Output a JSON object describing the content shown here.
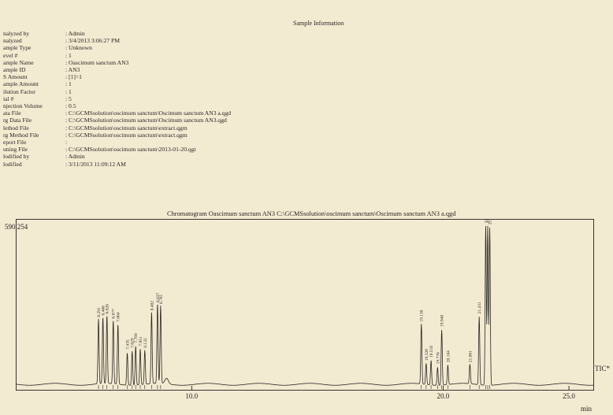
{
  "sheet_title": "Sample Information",
  "info_rows": [
    {
      "label": "nalyzed by",
      "value": ": Admin"
    },
    {
      "label": "nalyzed",
      "value": ": 3/4/2013 3:06:27 PM"
    },
    {
      "label": "ample Type",
      "value": ": Unknown"
    },
    {
      "label": "evel #",
      "value": ": 1"
    },
    {
      "label": "ample Name",
      "value": ": Oascimum sanctum AN3"
    },
    {
      "label": "ample ID",
      "value": ": AN3"
    },
    {
      "label": "S Amount",
      "value": ": [1]=1"
    },
    {
      "label": "ample Amount",
      "value": ": 1"
    },
    {
      "label": "ilution Factor",
      "value": ": 1"
    },
    {
      "label": "ial #",
      "value": ": 5"
    },
    {
      "label": "njection Volume",
      "value": ": 0.5"
    },
    {
      "label": "ata File",
      "value": ": C:\\GCMSsolution\\oscimum sanctum\\Oscimum sanctum AN3 a.qgd"
    },
    {
      "label": "rg Data File",
      "value": ": C:\\GCMSsolution\\oscimum sanctum\\Oscimum sanctum AN3.qgd"
    },
    {
      "label": "lethod File",
      "value": ": C:\\GCMSsolution\\oscimum sanctum\\extract.qgm"
    },
    {
      "label": "rg Method File",
      "value": ": C:\\GCMSsolution\\oscimum sanctum\\extract.qgm"
    },
    {
      "label": "eport File",
      "value": ":"
    },
    {
      "label": "uning File",
      "value": ": C:\\GCMSsolution\\oscimum sanctum\\2013-01-20.qgt"
    },
    {
      "label": "lodified by",
      "value": ": Admin"
    },
    {
      "label": "lodified",
      "value": ": 3/11/2013 11:09:12 AM"
    }
  ],
  "chromatogram_title": "Chromatogram Oascimum sanctum AN3 C:\\GCMSsolution\\oscimum sanctum\\Oscimum sanctum AN3 a.qgd",
  "max_intensity_label": "590,254",
  "x_unit": "min",
  "trace_label": "TIC*",
  "colors": {
    "background": "#f3ead2",
    "ink": "#2a2620"
  },
  "chart_data": {
    "type": "line",
    "xlim": [
      3.0,
      26.0
    ],
    "ylim": [
      0,
      590254
    ],
    "x_ticks": [
      10.0,
      20.0,
      25.0
    ],
    "x_tick_labels": [
      "10.0",
      "20.0",
      "25.0"
    ],
    "grid": false,
    "peaks": [
      {
        "rt": 6.291,
        "label": "6.291",
        "height": 0.4
      },
      {
        "rt": 6.466,
        "label": "6.466",
        "height": 0.41
      },
      {
        "rt": 6.626,
        "label": "6.626",
        "height": 0.42
      },
      {
        "rt": 6.877,
        "label": "6.877",
        "height": 0.39
      },
      {
        "rt": 7.064,
        "label": "7.064",
        "height": 0.37
      },
      {
        "rt": 7.435,
        "label": "7.435",
        "height": 0.2
      },
      {
        "rt": 7.629,
        "label": "7.629",
        "height": 0.21
      },
      {
        "rt": 7.769,
        "label": "7.769",
        "height": 0.24
      },
      {
        "rt": 7.951,
        "label": "7.951",
        "height": 0.22
      },
      {
        "rt": 8.132,
        "label": "8.132",
        "height": 0.21
      },
      {
        "rt": 8.402,
        "label": "8.402",
        "height": 0.44
      },
      {
        "rt": 8.637,
        "label": "8.637",
        "height": 0.49
      },
      {
        "rt": 8.761,
        "label": "8.761",
        "height": 0.48
      },
      {
        "rt": 19.13,
        "label": "19.130",
        "height": 0.37
      },
      {
        "rt": 19.32,
        "label": "19.320",
        "height": 0.13
      },
      {
        "rt": 19.516,
        "label": "19.516",
        "height": 0.15
      },
      {
        "rt": 19.776,
        "label": "19.776",
        "height": 0.11
      },
      {
        "rt": 19.94,
        "label": "19.940",
        "height": 0.34
      },
      {
        "rt": 20.184,
        "label": "20.184",
        "height": 0.12
      },
      {
        "rt": 21.061,
        "label": "21.061",
        "height": 0.12
      },
      {
        "rt": 21.431,
        "label": "21.431",
        "height": 0.42
      },
      {
        "rt": 21.69,
        "label": "21.690",
        "height": 0.98
      },
      {
        "rt": 21.77,
        "label": "21.770",
        "height": 0.98
      },
      {
        "rt": 21.85,
        "label": "21.850",
        "height": 0.97
      }
    ]
  }
}
